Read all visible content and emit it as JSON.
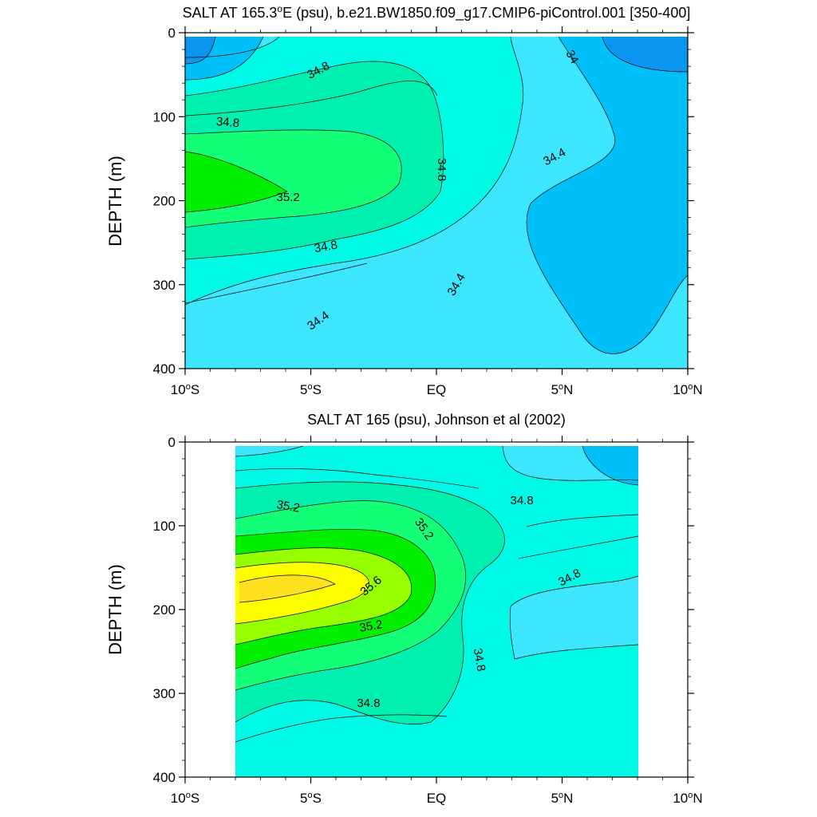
{
  "chart_data": [
    {
      "type": "contour",
      "title": "SALT AT 165.3°E (psu), b.e21.BW1850.f09_g17.CMIP6-piControl.001 [350-400]",
      "title_parts": [
        "SALT AT 165.3",
        "o",
        "E (psu), b.e21.BW1850.f09_g17.CMIP6-piControl.001 [350-400]"
      ],
      "ylabel": "DEPTH (m)",
      "xlim": [
        -10,
        10
      ],
      "ylim": [
        0,
        400
      ],
      "y_inverted": true,
      "x_ticks": [
        {
          "value": -10,
          "label": "10",
          "deg": "o",
          "hem": "S"
        },
        {
          "value": -5,
          "label": "5",
          "deg": "o",
          "hem": "S"
        },
        {
          "value": 0,
          "label": "EQ",
          "deg": "",
          "hem": ""
        },
        {
          "value": 5,
          "label": "5",
          "deg": "o",
          "hem": "N"
        },
        {
          "value": 10,
          "label": "10",
          "deg": "o",
          "hem": "N"
        }
      ],
      "y_ticks": [
        0,
        100,
        200,
        300,
        400
      ],
      "data_xlim": [
        -10,
        10
      ],
      "data_ylim": [
        5,
        400
      ],
      "levels": [
        {
          "value": 34.0,
          "color": "#0a96f0"
        },
        {
          "value": 34.2,
          "color": "#00c0fa"
        },
        {
          "value": 34.4,
          "color": "#3ce6ff"
        },
        {
          "value": 34.6,
          "color": "#00fae6"
        },
        {
          "value": 34.8,
          "color": "#00f0b0"
        },
        {
          "value": 35.0,
          "color": "#14ff78"
        },
        {
          "value": 35.2,
          "color": "#00f000"
        }
      ],
      "background_color": "#00fae6",
      "contour_labels": [
        {
          "text": "34.8",
          "x": -4.7,
          "y": 45,
          "angle": -28
        },
        {
          "text": "34.8",
          "x": -8.3,
          "y": 107,
          "angle": 5
        },
        {
          "text": "35.2",
          "x": -5.9,
          "y": 196,
          "angle": 0
        },
        {
          "text": "34.8",
          "x": 0.2,
          "y": 163,
          "angle": 90
        },
        {
          "text": "34.8",
          "x": -4.4,
          "y": 255,
          "angle": -10
        },
        {
          "text": "34.4",
          "x": -4.7,
          "y": 343,
          "angle": -35
        },
        {
          "text": "34.4",
          "x": 0.8,
          "y": 300,
          "angle": -60
        },
        {
          "text": "34.4",
          "x": 4.7,
          "y": 148,
          "angle": -28
        },
        {
          "text": "34",
          "x": 5.4,
          "y": 29,
          "angle": 60
        }
      ]
    },
    {
      "type": "contour",
      "title": "SALT AT 165 (psu), Johnson et al (2002)",
      "title_parts": [
        "SALT AT 165 (psu), Johnson et al (2002)"
      ],
      "ylabel": "DEPTH (m)",
      "xlim": [
        -10,
        10
      ],
      "ylim": [
        0,
        400
      ],
      "y_inverted": true,
      "x_ticks": [
        {
          "value": -10,
          "label": "10",
          "deg": "o",
          "hem": "S"
        },
        {
          "value": -5,
          "label": "5",
          "deg": "o",
          "hem": "S"
        },
        {
          "value": 0,
          "label": "EQ",
          "deg": "",
          "hem": ""
        },
        {
          "value": 5,
          "label": "5",
          "deg": "o",
          "hem": "N"
        },
        {
          "value": 10,
          "label": "10",
          "deg": "o",
          "hem": "N"
        }
      ],
      "y_ticks": [
        0,
        100,
        200,
        300,
        400
      ],
      "data_xlim": [
        -8,
        8
      ],
      "data_ylim": [
        5,
        400
      ],
      "levels": [
        {
          "value": 34.4,
          "color": "#00c0fa"
        },
        {
          "value": 34.6,
          "color": "#3ce6ff"
        },
        {
          "value": 34.8,
          "color": "#00fae6"
        },
        {
          "value": 35.0,
          "color": "#00f0b0"
        },
        {
          "value": 35.2,
          "color": "#14ff78"
        },
        {
          "value": 35.4,
          "color": "#00f000"
        },
        {
          "value": 35.6,
          "color": "#96ff00"
        },
        {
          "value": 35.8,
          "color": "#ffff00"
        },
        {
          "value": 36.0,
          "color": "#ffe11e"
        }
      ],
      "background_color": "#00fae6",
      "contour_labels": [
        {
          "text": "35.2",
          "x": -5.9,
          "y": 77,
          "angle": 10
        },
        {
          "text": "35.2",
          "x": -0.5,
          "y": 104,
          "angle": 55
        },
        {
          "text": "34.8",
          "x": 3.4,
          "y": 70,
          "angle": 0
        },
        {
          "text": "35.6",
          "x": -2.6,
          "y": 172,
          "angle": -40
        },
        {
          "text": "35.2",
          "x": -2.6,
          "y": 220,
          "angle": -10
        },
        {
          "text": "34.8",
          "x": 5.3,
          "y": 162,
          "angle": -28
        },
        {
          "text": "34.8",
          "x": 1.7,
          "y": 260,
          "angle": 80
        },
        {
          "text": "34.8",
          "x": -2.7,
          "y": 312,
          "angle": 0
        }
      ]
    }
  ]
}
